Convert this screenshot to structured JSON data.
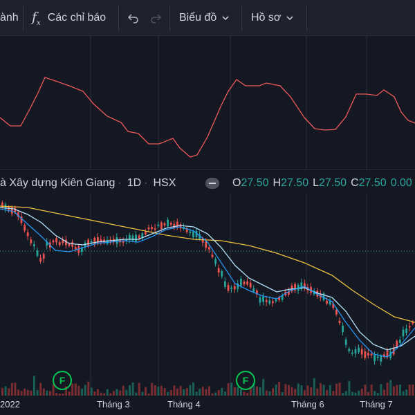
{
  "toolbar": {
    "partial_label": "ành",
    "indicators_label": "Các chỉ báo",
    "chart_label": "Biểu đồ",
    "profile_label": "Hồ sơ",
    "icons": {
      "fx": "fx-icon",
      "undo": "undo-icon",
      "redo": "redo-icon",
      "chevron": "chevron-down-icon"
    }
  },
  "legend": {
    "symbol_name": "à Xây dựng Kiên Giang",
    "interval": "1D",
    "exchange": "HSX",
    "open_key": "O",
    "open": "27.50",
    "high_key": "H",
    "high": "27.50",
    "low_key": "L",
    "low": "27.50",
    "close_key": "C",
    "close": "27.50",
    "change": "0.00"
  },
  "time_axis": {
    "labels": [
      "2022",
      "Tháng 3",
      "Tháng 4",
      "Tháng 6",
      "Tháng 7"
    ]
  },
  "colors": {
    "up": "#26a69a",
    "down": "#ef5350",
    "ma_fast": "#2196f3",
    "ma_mid": "#b3e5fc",
    "ma_slow": "#f0c040",
    "indicator": "#f05a5a",
    "event_marker": "#00c853"
  },
  "event_markers": {
    "label": "F"
  },
  "chart_data": {
    "type": "candlestick",
    "x_labels": [
      "2022",
      "Tháng 3",
      "Tháng 4",
      "Tháng 6",
      "Tháng 7"
    ],
    "legend_ohlc": {
      "open": 27.5,
      "high": 27.5,
      "low": 27.5,
      "close": 27.5,
      "change": 0.0
    },
    "grid": true,
    "series": [
      {
        "type": "candlestick"
      },
      {
        "type": "line",
        "color": "#2196f3"
      },
      {
        "type": "line",
        "color": "#b3e5fc"
      },
      {
        "type": "line",
        "color": "#f0c040"
      },
      {
        "type": "volume"
      },
      {
        "type": "oscillator",
        "color": "#f05a5a"
      }
    ]
  }
}
